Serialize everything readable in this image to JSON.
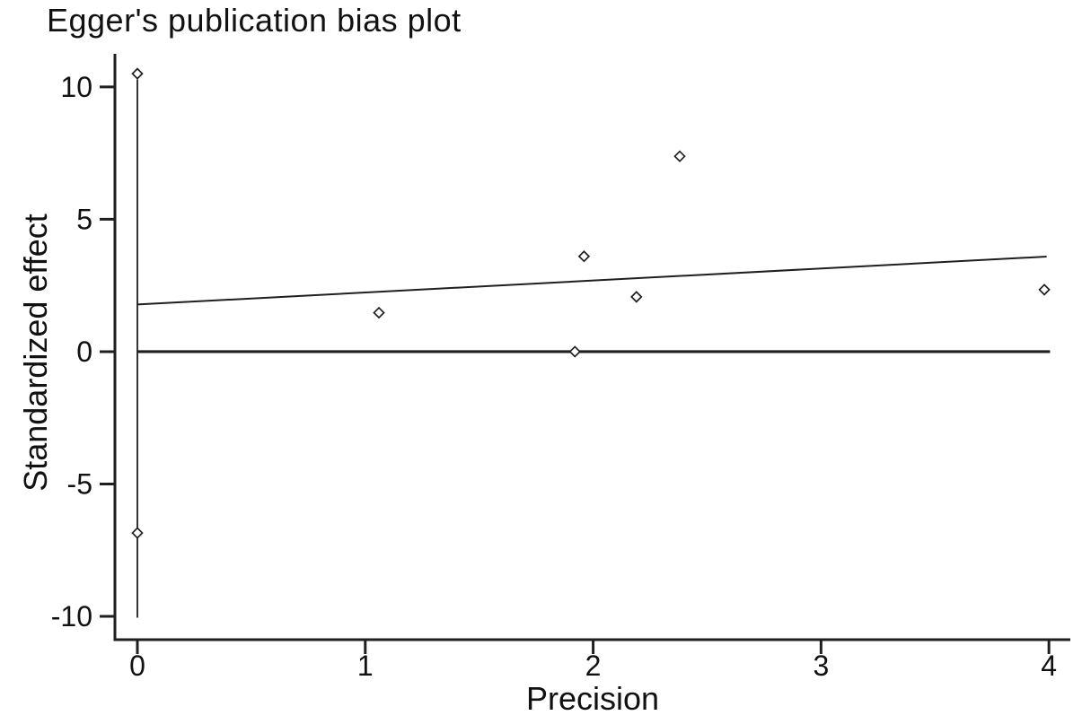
{
  "page": {
    "background": "#ffffff",
    "text_color": "#111111",
    "line_color": "#1f1f1f"
  },
  "chart_data": {
    "type": "scatter",
    "title": "Egger's publication bias plot",
    "xlabel": "Precision",
    "ylabel": "Standardized effect",
    "xlim": [
      -0.0985,
      4.094
    ],
    "ylim": [
      -10.88,
      11.25
    ],
    "x_ticks": [
      "0",
      "1",
      "2",
      "3",
      "4"
    ],
    "x_tick_values": [
      0,
      1,
      2,
      3,
      4
    ],
    "y_ticks": [
      "10",
      "5",
      "0",
      "-5",
      "-10"
    ],
    "y_tick_values": [
      10,
      5,
      0,
      -5,
      -10
    ],
    "grid": false,
    "legend": "none",
    "marker": "open-diamond",
    "points": [
      {
        "x": 0.0,
        "y": 10.5
      },
      {
        "x": 0.0,
        "y": -6.85
      },
      {
        "x": 1.06,
        "y": 1.47
      },
      {
        "x": 1.92,
        "y": 0.0
      },
      {
        "x": 1.96,
        "y": 3.6
      },
      {
        "x": 2.19,
        "y": 2.07
      },
      {
        "x": 2.38,
        "y": 7.38
      },
      {
        "x": 3.98,
        "y": 2.34
      }
    ],
    "regression_line": {
      "x1": 0.0,
      "y1": 1.78,
      "x2": 3.99,
      "y2": 3.59
    },
    "zero_reference_line": {
      "y": 0,
      "x1": 0.0,
      "x2": 4.005
    },
    "vertical_spike_line": {
      "x": 0.0,
      "y1": -10.05,
      "y2": 10.28
    }
  }
}
